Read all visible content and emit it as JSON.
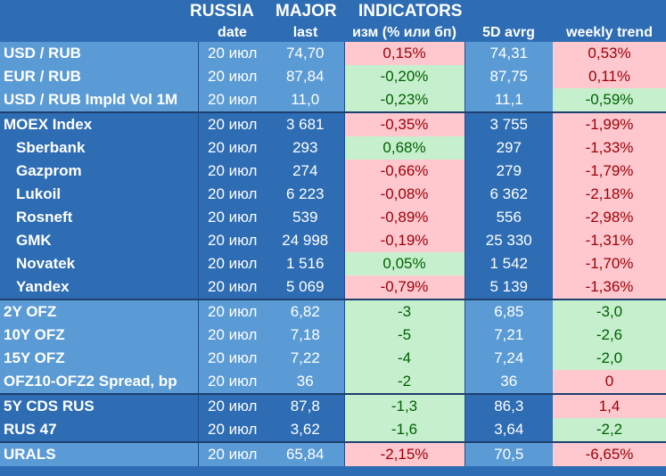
{
  "title": {
    "part1": "RUSSIA",
    "part2": "MAJOR",
    "part3": "INDICATORS"
  },
  "columns": [
    "date",
    "last",
    "изм (% или бп)",
    "5D avrg",
    "weekly trend"
  ],
  "rows": [
    {
      "name": "USD / RUB",
      "date": "20 июл",
      "last": "74,70",
      "change": "0,15%",
      "avg5d": "74,31",
      "weekly": "0,53%",
      "change_dir": "neg",
      "weekly_dir": "neg"
    },
    {
      "name": "EUR / RUB",
      "date": "20 июл",
      "last": "87,84",
      "change": "-0,20%",
      "avg5d": "87,75",
      "weekly": "0,11%",
      "change_dir": "pos",
      "weekly_dir": "neg"
    },
    {
      "name": "USD / RUB Impld Vol 1M",
      "date": "20 июл",
      "last": "11,0",
      "change": "-0,23%",
      "avg5d": "11,1",
      "weekly": "-0,59%",
      "change_dir": "pos",
      "weekly_dir": "pos"
    },
    {
      "name": "MOEX Index",
      "date": "20 июл",
      "last": "3 681",
      "change": "-0,35%",
      "avg5d": "3 755",
      "weekly": "-1,99%",
      "change_dir": "neg",
      "weekly_dir": "neg"
    },
    {
      "name": "Sberbank",
      "date": "20 июл",
      "last": "293",
      "change": "0,68%",
      "avg5d": "297",
      "weekly": "-1,33%",
      "change_dir": "pos",
      "weekly_dir": "neg"
    },
    {
      "name": "Gazprom",
      "date": "20 июл",
      "last": "274",
      "change": "-0,66%",
      "avg5d": "279",
      "weekly": "-1,79%",
      "change_dir": "neg",
      "weekly_dir": "neg"
    },
    {
      "name": "Lukoil",
      "date": "20 июл",
      "last": "6 223",
      "change": "-0,08%",
      "avg5d": "6 362",
      "weekly": "-2,18%",
      "change_dir": "neg",
      "weekly_dir": "neg"
    },
    {
      "name": "Rosneft",
      "date": "20 июл",
      "last": "539",
      "change": "-0,89%",
      "avg5d": "556",
      "weekly": "-2,98%",
      "change_dir": "neg",
      "weekly_dir": "neg"
    },
    {
      "name": "GMK",
      "date": "20 июл",
      "last": "24 998",
      "change": "-0,19%",
      "avg5d": "25 330",
      "weekly": "-1,31%",
      "change_dir": "neg",
      "weekly_dir": "neg"
    },
    {
      "name": "Novatek",
      "date": "20 июл",
      "last": "1 516",
      "change": "0,05%",
      "avg5d": "1 542",
      "weekly": "-1,70%",
      "change_dir": "pos",
      "weekly_dir": "neg"
    },
    {
      "name": "Yandex",
      "date": "20 июл",
      "last": "5 069",
      "change": "-0,79%",
      "avg5d": "5 139",
      "weekly": "-1,36%",
      "change_dir": "neg",
      "weekly_dir": "neg"
    },
    {
      "name": "2Y OFZ",
      "date": "20 июл",
      "last": "6,82",
      "change": "-3",
      "avg5d": "6,85",
      "weekly": "-3,0",
      "change_dir": "pos",
      "weekly_dir": "pos"
    },
    {
      "name": "10Y OFZ",
      "date": "20 июл",
      "last": "7,18",
      "change": "-5",
      "avg5d": "7,21",
      "weekly": "-2,6",
      "change_dir": "pos",
      "weekly_dir": "pos"
    },
    {
      "name": "15Y OFZ",
      "date": "20 июл",
      "last": "7,22",
      "change": "-4",
      "avg5d": "7,24",
      "weekly": "-2,0",
      "change_dir": "pos",
      "weekly_dir": "pos"
    },
    {
      "name": "OFZ10-OFZ2 Spread, bp",
      "date": "20 июл",
      "last": "36",
      "change": "-2",
      "avg5d": "36",
      "weekly": "0",
      "change_dir": "pos",
      "weekly_dir": "neg"
    },
    {
      "name": "5Y CDS RUS",
      "date": "20 июл",
      "last": "87,8",
      "change": "-1,3",
      "avg5d": "86,3",
      "weekly": "1,4",
      "change_dir": "pos",
      "weekly_dir": "neg"
    },
    {
      "name": "RUS 47",
      "date": "20 июл",
      "last": "3,62",
      "change": "-1,6",
      "avg5d": "3,64",
      "weekly": "-2,2",
      "change_dir": "pos",
      "weekly_dir": "pos"
    },
    {
      "name": "URALS",
      "date": "20 июл",
      "last": "65,84",
      "change": "-2,15%",
      "avg5d": "70,5",
      "weekly": "-6,65%",
      "change_dir": "neg",
      "weekly_dir": "neg"
    }
  ],
  "colors": {
    "header_bg": "#2e6db4",
    "light_block": "#5b9bd5",
    "positive_bg": "#c6efce",
    "positive_text": "#006100",
    "negative_bg": "#ffc7ce",
    "negative_text": "#9c0006"
  }
}
